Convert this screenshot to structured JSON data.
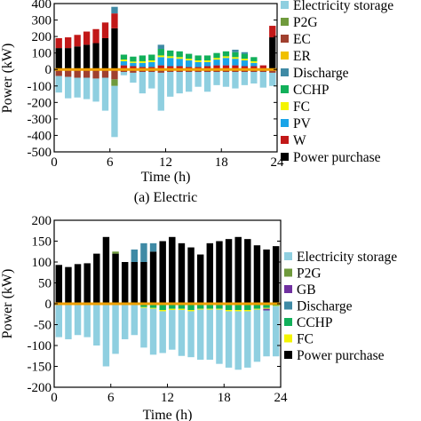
{
  "chart_data": [
    {
      "type": "bar",
      "caption": "(a) Electric",
      "xlabel": "Time (h)",
      "ylabel": "Power (kW)",
      "xlim": [
        0,
        24
      ],
      "ylim": [
        -500,
        400
      ],
      "xticks": [
        "0",
        "6",
        "12",
        "18",
        "24"
      ],
      "yticks": [
        "-500",
        "-400",
        "-300",
        "-200",
        "-100",
        "0",
        "100",
        "200",
        "300",
        "400"
      ],
      "legend_position": "right",
      "legend": [
        "Electricity storage",
        "P2G",
        "EC",
        "ER",
        "Discharge",
        "CCHP",
        "FC",
        "PV",
        "W",
        "Power purchase"
      ],
      "colors": {
        "Electricity storage": "#8fcfe0",
        "P2G": "#6f9a3c",
        "EC": "#a0402f",
        "ER": "#f0c000",
        "Discharge": "#3f8aa5",
        "CCHP": "#12b05a",
        "FC": "#f4f400",
        "PV": "#19a4e8",
        "W": "#c21818",
        "Power purchase": "#000000"
      },
      "categories": [
        "1",
        "2",
        "3",
        "4",
        "5",
        "6",
        "7",
        "8",
        "9",
        "10",
        "11",
        "12",
        "13",
        "14",
        "15",
        "16",
        "17",
        "18",
        "19",
        "20",
        "21",
        "22",
        "23",
        "24"
      ],
      "series": [
        {
          "name": "Power purchase",
          "values": [
            130,
            130,
            140,
            150,
            160,
            190,
            250,
            0,
            0,
            0,
            0,
            0,
            0,
            0,
            0,
            0,
            0,
            0,
            0,
            0,
            0,
            0,
            0,
            195
          ]
        },
        {
          "name": "W",
          "values": [
            60,
            65,
            70,
            80,
            85,
            95,
            90,
            25,
            20,
            15,
            15,
            25,
            20,
            20,
            15,
            15,
            20,
            25,
            25,
            25,
            20,
            20,
            25,
            70
          ]
        },
        {
          "name": "PV",
          "values": [
            0,
            0,
            0,
            0,
            0,
            0,
            0,
            25,
            20,
            25,
            30,
            50,
            50,
            45,
            40,
            30,
            25,
            35,
            45,
            40,
            35,
            20,
            0,
            0
          ]
        },
        {
          "name": "FC",
          "values": [
            0,
            0,
            0,
            0,
            0,
            0,
            0,
            10,
            8,
            10,
            10,
            10,
            10,
            10,
            10,
            10,
            10,
            10,
            10,
            10,
            10,
            10,
            0,
            0
          ]
        },
        {
          "name": "CCHP",
          "values": [
            0,
            0,
            0,
            0,
            0,
            0,
            0,
            30,
            30,
            35,
            35,
            40,
            35,
            35,
            30,
            30,
            30,
            30,
            30,
            30,
            30,
            25,
            0,
            0
          ]
        },
        {
          "name": "Discharge",
          "values": [
            0,
            0,
            0,
            0,
            0,
            0,
            40,
            0,
            0,
            0,
            0,
            25,
            0,
            0,
            0,
            0,
            0,
            0,
            0,
            15,
            10,
            0,
            0,
            0
          ]
        },
        {
          "name": "ER",
          "values": [
            0,
            0,
            0,
            0,
            0,
            0,
            0,
            0,
            0,
            0,
            0,
            0,
            0,
            0,
            0,
            0,
            0,
            0,
            0,
            0,
            0,
            0,
            0,
            0
          ]
        },
        {
          "name": "EC",
          "values": [
            -40,
            -45,
            -50,
            -50,
            -55,
            -50,
            -60,
            -15,
            -20,
            -15,
            -15,
            -20,
            -15,
            -15,
            -15,
            -15,
            -15,
            -15,
            -15,
            -15,
            -15,
            -15,
            -15,
            -20
          ]
        },
        {
          "name": "P2G",
          "values": [
            0,
            0,
            0,
            0,
            0,
            0,
            -40,
            0,
            0,
            0,
            0,
            0,
            0,
            0,
            0,
            0,
            0,
            0,
            0,
            0,
            0,
            0,
            0,
            0
          ]
        },
        {
          "name": "Electricity storage",
          "values": [
            -100,
            -130,
            -120,
            -130,
            -140,
            -200,
            -310,
            -20,
            -60,
            -130,
            -100,
            -230,
            -150,
            -130,
            -120,
            -90,
            -120,
            -80,
            -90,
            -100,
            -80,
            -70,
            -95,
            -80
          ]
        }
      ]
    },
    {
      "type": "bar",
      "caption": "",
      "xlabel": "Time (h)",
      "ylabel": "Power (kW)",
      "xlim": [
        0,
        24
      ],
      "ylim": [
        -200,
        200
      ],
      "xticks": [
        "0",
        "6",
        "12",
        "18",
        "24"
      ],
      "yticks": [
        "-200",
        "-150",
        "-100",
        "-50",
        "0",
        "50",
        "100",
        "150",
        "200"
      ],
      "legend_position": "right",
      "legend": [
        "Electricity storage",
        "P2G",
        "GB",
        "Discharge",
        "CCHP",
        "FC",
        "Power purchase"
      ],
      "colors": {
        "Electricity storage": "#8fcfe0",
        "P2G": "#6f9a3c",
        "GB": "#7030a0",
        "Discharge": "#3f8aa5",
        "CCHP": "#12b05a",
        "FC": "#f4f400",
        "Power purchase": "#000000"
      },
      "categories": [
        "1",
        "2",
        "3",
        "4",
        "5",
        "6",
        "7",
        "8",
        "9",
        "10",
        "11",
        "12",
        "13",
        "14",
        "15",
        "16",
        "17",
        "18",
        "19",
        "20",
        "21",
        "22",
        "23",
        "24"
      ],
      "series": [
        {
          "name": "Power purchase",
          "values": [
            93,
            88,
            95,
            97,
            120,
            160,
            120,
            100,
            100,
            100,
            125,
            150,
            160,
            145,
            135,
            118,
            145,
            150,
            155,
            160,
            155,
            140,
            130,
            138
          ]
        },
        {
          "name": "Discharge",
          "values": [
            0,
            0,
            0,
            0,
            0,
            0,
            0,
            0,
            30,
            45,
            20,
            0,
            0,
            0,
            0,
            0,
            0,
            0,
            0,
            0,
            0,
            0,
            0,
            0
          ]
        },
        {
          "name": "P2G",
          "values": [
            0,
            0,
            0,
            0,
            0,
            0,
            5,
            0,
            0,
            0,
            0,
            0,
            0,
            0,
            0,
            0,
            0,
            0,
            0,
            0,
            0,
            0,
            0,
            0
          ]
        },
        {
          "name": "CCHP",
          "values": [
            0,
            0,
            0,
            0,
            0,
            0,
            0,
            0,
            0,
            -8,
            -10,
            -15,
            -12,
            -12,
            -15,
            -12,
            -12,
            -12,
            -15,
            -15,
            -15,
            -12,
            -10,
            -5
          ]
        },
        {
          "name": "FC",
          "values": [
            0,
            0,
            0,
            0,
            0,
            0,
            0,
            0,
            0,
            -2,
            -2,
            -3,
            -3,
            -3,
            -3,
            -2,
            -2,
            -2,
            -3,
            -3,
            -3,
            -2,
            -2,
            -1
          ]
        },
        {
          "name": "GB",
          "values": [
            0,
            0,
            0,
            0,
            0,
            0,
            0,
            0,
            0,
            0,
            0,
            0,
            0,
            0,
            0,
            0,
            0,
            0,
            0,
            0,
            0,
            0,
            -4,
            0
          ]
        },
        {
          "name": "Electricity storage",
          "values": [
            -80,
            -85,
            -75,
            -80,
            -100,
            -150,
            -120,
            -85,
            -75,
            -95,
            -110,
            -100,
            -95,
            -110,
            -110,
            -120,
            -120,
            -130,
            -135,
            -140,
            -135,
            -125,
            -110,
            -120
          ]
        }
      ]
    }
  ]
}
